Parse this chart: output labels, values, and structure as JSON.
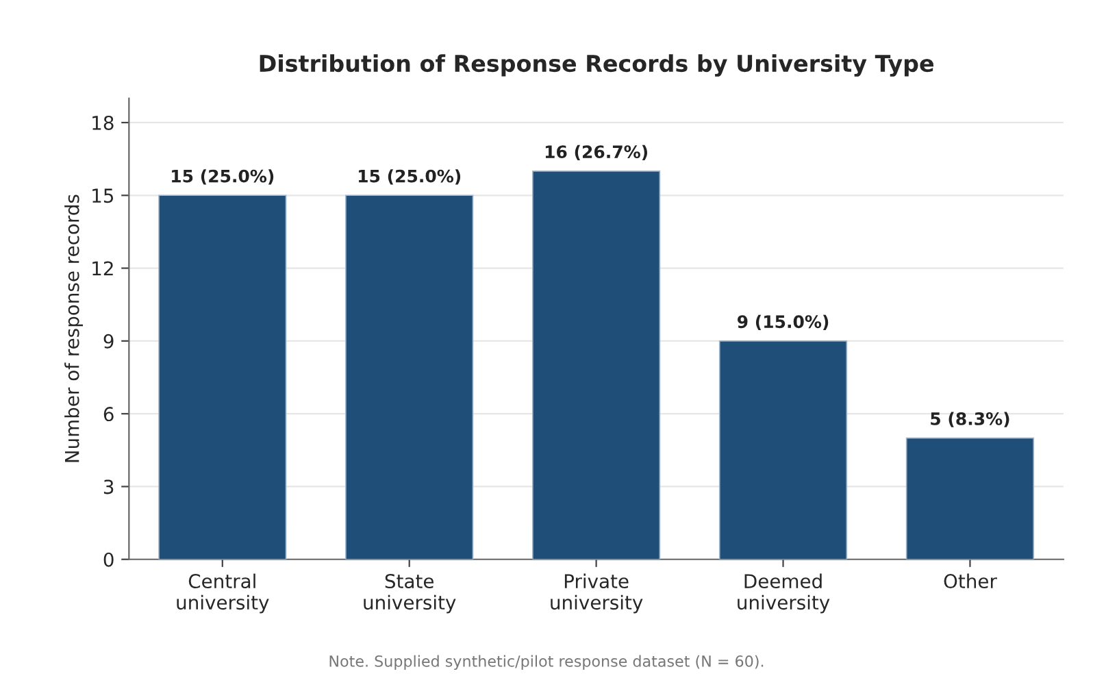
{
  "chart_data": {
    "type": "bar",
    "title": "Distribution of Response Records by University Type",
    "ylabel": "Number of response records",
    "categories": [
      "Central\nuniversity",
      "State\nuniversity",
      "Private\nuniversity",
      "Deemed\nuniversity",
      "Other"
    ],
    "values": [
      15,
      15,
      16,
      9,
      5
    ],
    "value_labels": [
      "15 (25.0%)",
      "15 (25.0%)",
      "16 (26.7%)",
      "9 (15.0%)",
      "5 (8.3%)"
    ],
    "color": "#1f4e79",
    "ylim": [
      0,
      19
    ],
    "yticks": [
      0,
      3,
      6,
      9,
      12,
      15,
      18
    ],
    "grid": "y",
    "legend": false,
    "annotations": [
      "Note. Supplied synthetic/pilot response dataset (N = 60)."
    ]
  }
}
